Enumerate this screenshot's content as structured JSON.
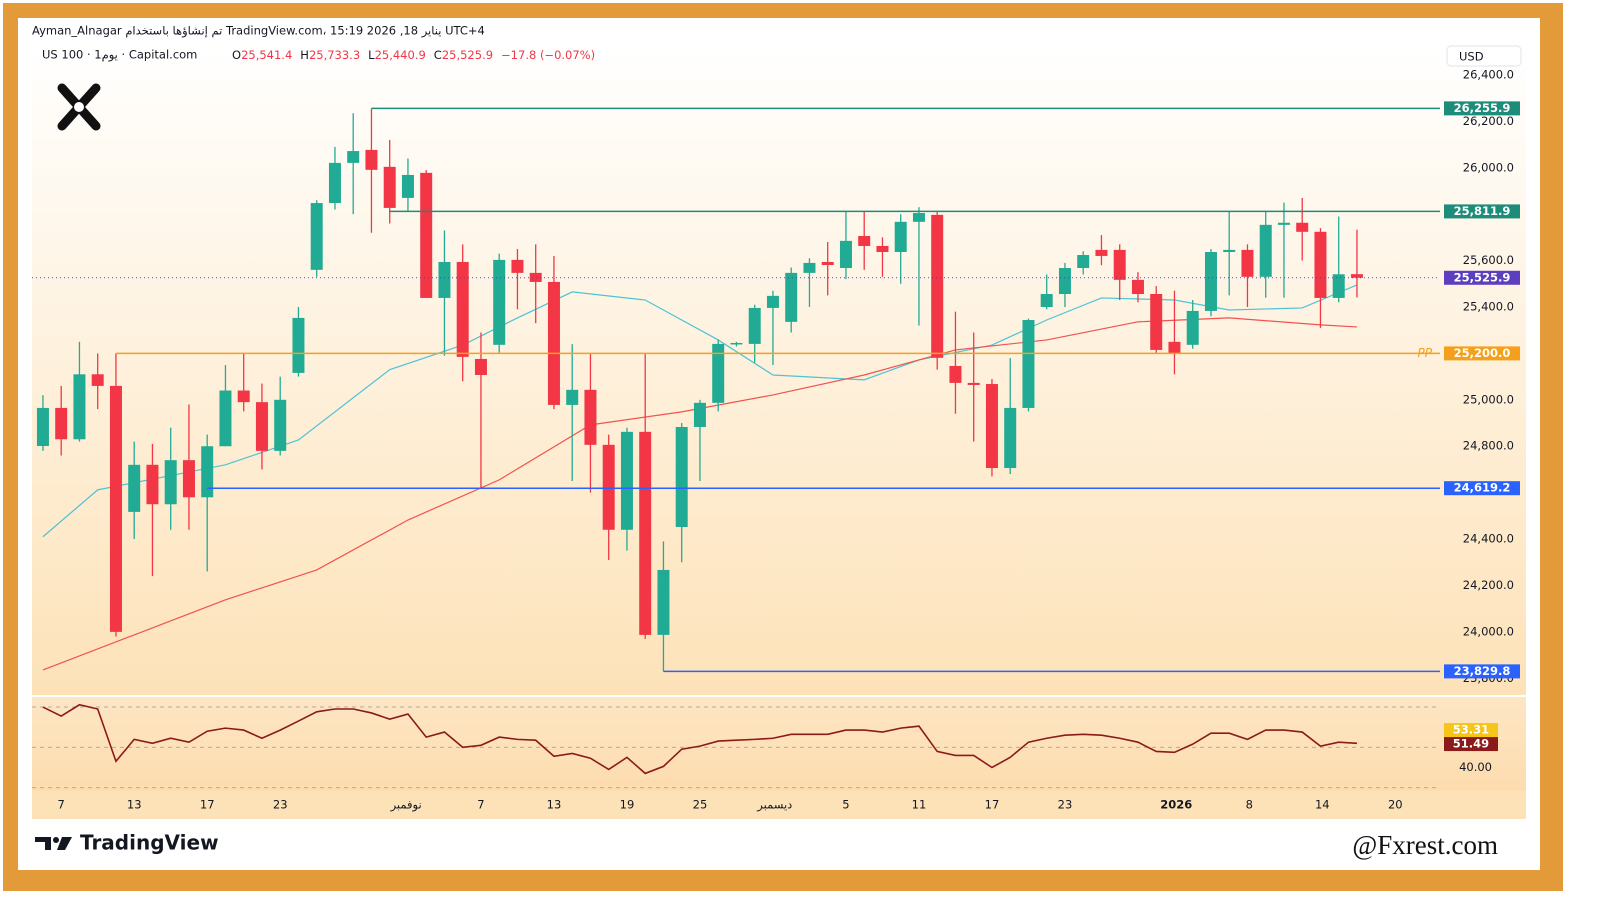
{
  "header": {
    "author_line": "Ayman_Alnagar تم إنشاؤها باستخدام TradingView.com، 15:19 2026 ,18 يناير UTC+4",
    "symbol": "US 100 · 1يوم · Capital.com",
    "ohlc": [
      {
        "key": "O",
        "value": "25,541.4"
      },
      {
        "key": "H",
        "value": "25,733.3"
      },
      {
        "key": "L",
        "value": "25,440.9"
      },
      {
        "key": "C",
        "value": "25,525.9"
      }
    ],
    "change": "−17.8 (−0.07%)",
    "currency": "USD"
  },
  "footer": {
    "brand": "TradingView",
    "watermark": "@Fxrest.com"
  },
  "chart_data": {
    "type": "candlestick",
    "up_color": "#22ab94",
    "down_color": "#f23645",
    "xlim": [
      -0.6,
      76.55
    ],
    "ylim": [
      23728,
      26529
    ],
    "yticks": [
      {
        "value": 26400,
        "label": "26,400.0"
      },
      {
        "value": 26200,
        "label": "26,200.0"
      },
      {
        "value": 26000,
        "label": "26,000.0"
      },
      {
        "value": 25600,
        "label": "25,600.0"
      },
      {
        "value": 25400,
        "label": "25,400.0"
      },
      {
        "value": 25000,
        "label": "25,000.0"
      },
      {
        "value": 24800,
        "label": "24,800.0"
      },
      {
        "value": 24400,
        "label": "24,400.0"
      },
      {
        "value": 24200,
        "label": "24,200.0"
      },
      {
        "value": 24000,
        "label": "24,000.0"
      },
      {
        "value": 23800,
        "label": "23,800.0"
      }
    ],
    "xticks": [
      {
        "value": 1,
        "label": "7"
      },
      {
        "value": 5,
        "label": "13"
      },
      {
        "value": 9,
        "label": "17"
      },
      {
        "value": 13,
        "label": "23"
      },
      {
        "value": 19.9,
        "label": "نوفمبر"
      },
      {
        "value": 24,
        "label": "7"
      },
      {
        "value": 28,
        "label": "13"
      },
      {
        "value": 32,
        "label": "19"
      },
      {
        "value": 36,
        "label": "25"
      },
      {
        "value": 40.1,
        "label": "ديسمبر"
      },
      {
        "value": 44,
        "label": "5"
      },
      {
        "value": 48,
        "label": "11"
      },
      {
        "value": 52,
        "label": "17"
      },
      {
        "value": 56,
        "label": "23"
      },
      {
        "value": 62.1,
        "label": "2026"
      },
      {
        "value": 66.1,
        "label": "8"
      },
      {
        "value": 70.1,
        "label": "14"
      },
      {
        "value": 74.1,
        "label": "20"
      }
    ],
    "candles": [
      [
        24801,
        25020,
        24780,
        24965
      ],
      [
        24965,
        25060,
        24760,
        24830
      ],
      [
        24830,
        25250,
        24820,
        25110
      ],
      [
        25110,
        25200,
        24960,
        25060
      ],
      [
        25060,
        25200,
        23980,
        24000
      ],
      [
        24517,
        24820,
        24400,
        24720
      ],
      [
        24720,
        24810,
        24240,
        24550
      ],
      [
        24550,
        24880,
        24440,
        24740
      ],
      [
        24740,
        24980,
        24440,
        24580
      ],
      [
        24580,
        24850,
        24260,
        24800
      ],
      [
        24800,
        25150,
        24800,
        25040
      ],
      [
        25040,
        25200,
        24950,
        24990
      ],
      [
        24990,
        25070,
        24700,
        24780
      ],
      [
        24780,
        25100,
        24760,
        25000
      ],
      [
        25116,
        25400,
        25100,
        25353
      ],
      [
        25560,
        25860,
        25530,
        25848
      ],
      [
        25848,
        26090,
        25820,
        26021
      ],
      [
        26021,
        26235,
        25800,
        26072
      ],
      [
        26077,
        26256,
        25720,
        25991
      ],
      [
        26004,
        26120,
        25760,
        25827
      ],
      [
        25870,
        26040,
        25815,
        25969
      ],
      [
        25978,
        25990,
        25440,
        25439
      ],
      [
        25439,
        25730,
        25190,
        25594
      ],
      [
        25594,
        25670,
        25080,
        25185
      ],
      [
        25176,
        25290,
        24619,
        25107
      ],
      [
        25237,
        25630,
        25200,
        25603
      ],
      [
        25603,
        25650,
        25390,
        25547
      ],
      [
        25547,
        25670,
        25330,
        25508
      ],
      [
        25508,
        25620,
        24960,
        24978
      ],
      [
        24978,
        25240,
        24650,
        25043
      ],
      [
        25043,
        25200,
        24600,
        24806
      ],
      [
        24806,
        24850,
        24310,
        24440
      ],
      [
        24440,
        24880,
        24350,
        24862
      ],
      [
        24862,
        25200,
        23970,
        23987
      ],
      [
        23987,
        24390,
        23830,
        24267
      ],
      [
        24452,
        24900,
        24300,
        24883
      ],
      [
        24883,
        25000,
        24650,
        24987
      ],
      [
        24987,
        25260,
        24950,
        25241
      ],
      [
        25241,
        25250,
        25230,
        25245
      ],
      [
        25241,
        25410,
        25160,
        25396
      ],
      [
        25396,
        25470,
        25150,
        25448
      ],
      [
        25336,
        25570,
        25290,
        25547
      ],
      [
        25547,
        25610,
        25400,
        25590
      ],
      [
        25594,
        25680,
        25450,
        25581
      ],
      [
        25568,
        25810,
        25520,
        25685
      ],
      [
        25706,
        25810,
        25560,
        25663
      ],
      [
        25663,
        25700,
        25530,
        25637
      ],
      [
        25637,
        25800,
        25500,
        25767
      ],
      [
        25767,
        25830,
        25320,
        25805
      ],
      [
        25797,
        25810,
        25130,
        25181
      ],
      [
        25146,
        25380,
        24940,
        25073
      ],
      [
        25073,
        25290,
        24820,
        25064
      ],
      [
        25068,
        25090,
        24670,
        24706
      ],
      [
        24706,
        25180,
        24680,
        24965
      ],
      [
        24965,
        25350,
        24950,
        25344
      ],
      [
        25400,
        25540,
        25390,
        25456
      ],
      [
        25456,
        25590,
        25400,
        25568
      ],
      [
        25568,
        25640,
        25540,
        25624
      ],
      [
        25646,
        25710,
        25580,
        25620
      ],
      [
        25646,
        25670,
        25430,
        25517
      ],
      [
        25517,
        25550,
        25420,
        25456
      ],
      [
        25456,
        25490,
        25200,
        25215
      ],
      [
        25250,
        25470,
        25110,
        25202
      ],
      [
        25237,
        25430,
        25220,
        25383
      ],
      [
        25383,
        25650,
        25360,
        25637
      ],
      [
        25637,
        25812,
        25450,
        25646
      ],
      [
        25646,
        25670,
        25400,
        25530
      ],
      [
        25530,
        25810,
        25440,
        25754
      ],
      [
        25754,
        25850,
        25440,
        25763
      ],
      [
        25763,
        25870,
        25600,
        25724
      ],
      [
        25724,
        25740,
        25310,
        25439
      ],
      [
        25439,
        25790,
        25420,
        25541
      ],
      [
        25541.4,
        25733.3,
        25440.9,
        25525.9
      ]
    ],
    "series": [
      {
        "color": "#4dc3d6",
        "x": [
          0,
          3,
          10,
          14,
          19,
          23,
          26,
          29,
          33,
          37,
          40,
          45,
          48,
          52,
          55,
          58,
          62,
          65,
          69,
          72
        ],
        "values": [
          24410,
          24612,
          24720,
          24827,
          25130,
          25236,
          25353,
          25465,
          25430,
          25258,
          25107,
          25086,
          25172,
          25236,
          25344,
          25439,
          25430,
          25387,
          25396,
          25495
        ]
      },
      {
        "color": "#f05350",
        "x": [
          0,
          5,
          10,
          15,
          20,
          25,
          30,
          35,
          40,
          45,
          50,
          55,
          60,
          65,
          70,
          72
        ],
        "values": [
          23836,
          23987,
          24138,
          24267,
          24482,
          24655,
          24892,
          24948,
          25021,
          25107,
          25215,
          25258,
          25336,
          25353,
          25323,
          25314
        ]
      }
    ],
    "levels": [
      {
        "value": 26255.9,
        "label": "26,255.9",
        "x0": 18,
        "color": "#1e8c7a"
      },
      {
        "value": 25811.9,
        "label": "25,811.9",
        "x0": 19,
        "color": "#1e8c7a"
      },
      {
        "value": 25200,
        "label": "25,200.0",
        "x0": 4,
        "color": "#f5a01a",
        "tag": "PP"
      },
      {
        "value": 24619.2,
        "label": "24,619.2",
        "x0": 9,
        "color": "#2962ff"
      },
      {
        "value": 23829.8,
        "label": "23,829.8",
        "x0": 34,
        "color": "#2962ff"
      }
    ],
    "last_price": {
      "value": 25525.9,
      "label": "25,525.9",
      "color": "#5b3fbf"
    },
    "rsi": {
      "ylim": [
        32,
        64
      ],
      "yticks": [
        {
          "value": 40,
          "label": "40.00"
        }
      ],
      "levels": [
        61.5,
        47.2,
        32.8
      ],
      "color": "#8b1a1a",
      "values": [
        61.5,
        58.3,
        62.3,
        60.8,
        42.2,
        50,
        48.6,
        50.4,
        49,
        52.9,
        54,
        53.3,
        50.4,
        53.3,
        56.5,
        59.8,
        60.8,
        60.8,
        59.4,
        57.2,
        59,
        50.8,
        52.6,
        47.2,
        47.9,
        50.8,
        50,
        49.7,
        44,
        45,
        43.3,
        39.3,
        43.6,
        37.9,
        40.4,
        46.5,
        47.6,
        49.4,
        49.7,
        50,
        50.4,
        51.8,
        51.8,
        51.8,
        53.3,
        53.3,
        52.6,
        54,
        54.7,
        45.7,
        44.3,
        44.3,
        40,
        43.6,
        49,
        50.4,
        51.5,
        51.8,
        51.5,
        50.4,
        49,
        45.7,
        45.4,
        48.3,
        52.2,
        52.2,
        50,
        53.3,
        53.3,
        52.6,
        47.6,
        49,
        48.6
      ],
      "badges": [
        {
          "value": 53.31,
          "label": "53.31",
          "color": "#f5c518",
          "text_color": "#131722"
        },
        {
          "value": 51.49,
          "label": "51.49",
          "color": "#8b1a1a",
          "text_color": "#ffffff"
        }
      ]
    }
  }
}
